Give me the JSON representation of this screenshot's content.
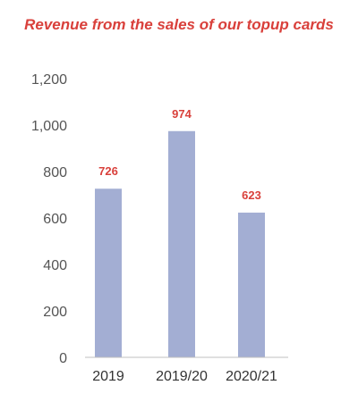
{
  "chart_data": {
    "type": "bar",
    "title": "Revenue from the sales of our topup cards",
    "xlabel": "",
    "ylabel": "",
    "categories": [
      "2019",
      "2019/20",
      "2020/21"
    ],
    "values": [
      726,
      974,
      623
    ],
    "data_labels": [
      "726",
      "974",
      "623"
    ],
    "ylim": [
      0,
      1200
    ],
    "yticks": [
      0,
      200,
      400,
      600,
      800,
      1000,
      1200
    ],
    "ytick_labels": [
      "0",
      "200",
      "400",
      "600",
      "800",
      "1,000",
      "1,200"
    ],
    "grid": false,
    "legend": "none"
  },
  "colors": {
    "title": "#d9403b",
    "bar": "#a3aed3",
    "data_label": "#d9403b",
    "axis_line": "#bfbfbf",
    "tick_text": "#555555",
    "category_text": "#333333"
  }
}
